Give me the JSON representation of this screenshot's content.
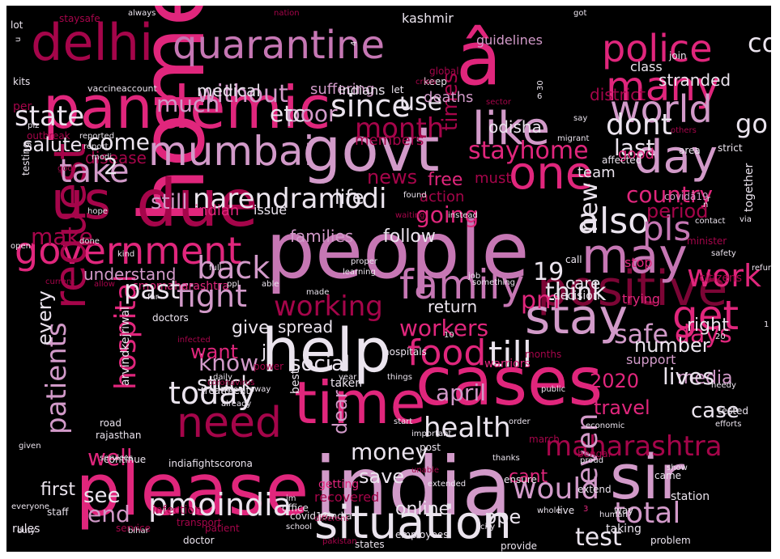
{
  "palette": {
    "background": "#000000",
    "white": "#ebe4ee",
    "lilac": "#d29ac9",
    "orchid": "#c677b4",
    "pink": "#e0267c",
    "crimson": "#a5054a",
    "maroon": "#7c0535",
    "darkred": "#4a0a20"
  },
  "words": [
    {
      "t": "people",
      "c": "orchid"
    },
    {
      "t": "home",
      "c": "pink"
    },
    {
      "t": "please",
      "c": "pink"
    },
    {
      "t": "india",
      "c": "lilac"
    },
    {
      "t": "help",
      "c": "white"
    },
    {
      "t": "cases",
      "c": "pink"
    },
    {
      "t": "govt",
      "c": "lilac"
    },
    {
      "t": "pandemic",
      "c": "pink"
    },
    {
      "t": "due",
      "c": "crimson"
    },
    {
      "t": "delhi",
      "c": "crimson"
    },
    {
      "t": "â",
      "c": "pink"
    },
    {
      "t": "time",
      "c": "pink"
    },
    {
      "t": "sir",
      "c": "lilac"
    },
    {
      "t": "situation",
      "c": "white"
    },
    {
      "t": "us",
      "c": "crimson"
    },
    {
      "t": "quarantine",
      "c": "orchid"
    },
    {
      "t": "mumbai",
      "c": "lilac"
    },
    {
      "t": "government",
      "c": "pink"
    },
    {
      "t": "like",
      "c": "lilac"
    },
    {
      "t": "one",
      "c": "pink"
    },
    {
      "t": "positive",
      "c": "maroon"
    },
    {
      "t": "stay",
      "c": "lilac"
    },
    {
      "t": "police",
      "c": "pink"
    },
    {
      "t": "many",
      "c": "pink"
    },
    {
      "t": "may",
      "c": "orchid"
    },
    {
      "t": "family",
      "c": "orchid"
    },
    {
      "t": "request",
      "c": "crimson"
    },
    {
      "t": "day",
      "c": "lilac"
    },
    {
      "t": "need",
      "c": "crimson"
    },
    {
      "t": "world",
      "c": "lilac"
    },
    {
      "t": "also",
      "c": "white"
    },
    {
      "t": "pls",
      "c": "orchid"
    },
    {
      "t": "narendramodi",
      "c": "white"
    },
    {
      "t": "students",
      "c": "crimson"
    },
    {
      "t": "food",
      "c": "pink"
    },
    {
      "t": "till",
      "c": "white"
    },
    {
      "t": "get",
      "c": "pink"
    },
    {
      "t": "pmoindia",
      "c": "white"
    },
    {
      "t": "would",
      "c": "lilac"
    },
    {
      "t": "maharashtra",
      "c": "crimson"
    },
    {
      "t": "work",
      "c": "pink"
    },
    {
      "t": "fight",
      "c": "lilac"
    },
    {
      "t": "health",
      "c": "white"
    },
    {
      "t": "today",
      "c": "white"
    },
    {
      "t": "back",
      "c": "lilac"
    },
    {
      "t": "total",
      "c": "lilac"
    },
    {
      "t": "patients",
      "c": "lilac"
    },
    {
      "t": "hospital",
      "c": "pink"
    },
    {
      "t": "safe",
      "c": "lilac"
    },
    {
      "t": "days",
      "c": "pink"
    },
    {
      "t": "since",
      "c": "white"
    },
    {
      "t": "state",
      "c": "white"
    },
    {
      "t": "take",
      "c": "lilac"
    },
    {
      "t": "month",
      "c": "crimson"
    },
    {
      "t": "dont",
      "c": "white"
    },
    {
      "t": "working",
      "c": "crimson"
    },
    {
      "t": "country",
      "c": "pink"
    },
    {
      "t": "19",
      "c": "white"
    },
    {
      "t": "new",
      "c": "white"
    },
    {
      "t": "even",
      "c": "lilac"
    },
    {
      "t": "think",
      "c": "white"
    },
    {
      "t": "stayhome",
      "c": "pink"
    },
    {
      "t": "go",
      "c": "white"
    },
    {
      "t": "without",
      "c": "lilac"
    },
    {
      "t": "much",
      "c": "lilac"
    },
    {
      "t": "poor",
      "c": "lilac"
    },
    {
      "t": "use",
      "c": "white"
    },
    {
      "t": "times",
      "c": "crimson"
    },
    {
      "t": "last",
      "c": "white"
    },
    {
      "t": "make",
      "c": "crimson"
    },
    {
      "t": "come",
      "c": "white"
    },
    {
      "t": "well",
      "c": "pink"
    },
    {
      "t": "end",
      "c": "lilac"
    },
    {
      "t": "see",
      "c": "white"
    },
    {
      "t": "know",
      "c": "lilac"
    },
    {
      "t": "stuck",
      "c": "white"
    },
    {
      "t": "april",
      "c": "lilac"
    },
    {
      "t": "money",
      "c": "white"
    },
    {
      "t": "social",
      "c": "white"
    },
    {
      "t": "workers",
      "c": "pink"
    },
    {
      "t": "pm",
      "c": "pink"
    },
    {
      "t": "period",
      "c": "crimson"
    },
    {
      "t": "going",
      "c": "pink"
    },
    {
      "t": "life",
      "c": "white"
    },
    {
      "t": "still",
      "c": "lilac"
    },
    {
      "t": "news",
      "c": "crimson"
    },
    {
      "t": "case",
      "c": "white"
    },
    {
      "t": "test",
      "c": "white"
    },
    {
      "t": "2020",
      "c": "pink"
    },
    {
      "t": "number",
      "c": "white"
    },
    {
      "t": "save",
      "c": "white"
    },
    {
      "t": "dear",
      "c": "lilac"
    },
    {
      "t": "every",
      "c": "white"
    },
    {
      "t": "first",
      "c": "white"
    },
    {
      "t": "ppe",
      "c": "white"
    },
    {
      "t": "online",
      "c": "white"
    },
    {
      "t": "travel",
      "c": "pink"
    },
    {
      "t": "cant",
      "c": "pink"
    },
    {
      "t": "want",
      "c": "pink"
    },
    {
      "t": "ji",
      "c": "white"
    },
    {
      "t": "right",
      "c": "white"
    },
    {
      "t": "media",
      "c": "lilac"
    },
    {
      "t": "spread",
      "c": "white"
    },
    {
      "t": "return",
      "c": "white"
    },
    {
      "t": "care",
      "c": "white"
    },
    {
      "t": "give",
      "c": "white"
    },
    {
      "t": "follow",
      "c": "white"
    },
    {
      "t": "families",
      "c": "lilac"
    },
    {
      "t": "understand",
      "c": "lilac"
    },
    {
      "t": "medical",
      "c": "white"
    },
    {
      "t": "deaths",
      "c": "lilac"
    },
    {
      "t": "suffering",
      "c": "lilac"
    },
    {
      "t": "stranded",
      "c": "white"
    },
    {
      "t": "district",
      "c": "crimson"
    },
    {
      "t": "odisha",
      "c": "white"
    },
    {
      "t": "members",
      "c": "crimson"
    },
    {
      "t": "disease",
      "c": "crimson"
    },
    {
      "t": "free",
      "c": "pink"
    },
    {
      "t": "must",
      "c": "crimson"
    },
    {
      "t": "action",
      "c": "crimson"
    },
    {
      "t": "indian",
      "c": "pink"
    },
    {
      "t": "issue",
      "c": "white"
    },
    {
      "t": "team",
      "c": "white"
    },
    {
      "t": "good",
      "c": "pink"
    },
    {
      "t": "kashmir",
      "c": "white"
    },
    {
      "t": "guidelines",
      "c": "lilac"
    },
    {
      "t": "class",
      "c": "white"
    },
    {
      "t": "indians",
      "c": "white"
    },
    {
      "t": "lot",
      "c": "white"
    },
    {
      "t": "staysafe",
      "c": "crimson"
    },
    {
      "t": "always",
      "c": "white"
    },
    {
      "t": "nation",
      "c": "crimson"
    },
    {
      "t": "got",
      "c": "white"
    },
    {
      "t": "join",
      "c": "white"
    },
    {
      "t": "let",
      "c": "white"
    },
    {
      "t": "keep",
      "c": "white"
    },
    {
      "t": "per",
      "c": "crimson"
    },
    {
      "t": "kits",
      "c": "white"
    },
    {
      "t": "vaccine",
      "c": "white"
    },
    {
      "t": "account",
      "c": "white"
    },
    {
      "t": "testing",
      "c": "white"
    },
    {
      "t": "outbreak",
      "c": "crimson"
    },
    {
      "t": "report",
      "c": "white"
    },
    {
      "t": "modi",
      "c": "white"
    },
    {
      "t": "reported",
      "c": "white"
    },
    {
      "t": "crisis",
      "c": "crimson"
    },
    {
      "t": "global",
      "c": "crimson"
    },
    {
      "t": "sector",
      "c": "crimson"
    },
    {
      "t": "migrant",
      "c": "white"
    },
    {
      "t": "say",
      "c": "white"
    },
    {
      "t": "affected",
      "c": "white"
    },
    {
      "t": "strict",
      "c": "white"
    },
    {
      "t": "others",
      "c": "crimson"
    },
    {
      "t": "area",
      "c": "white"
    },
    {
      "t": "covidâ19",
      "c": "lilac"
    },
    {
      "t": "together",
      "c": "white"
    },
    {
      "t": "stop",
      "c": "pink"
    },
    {
      "t": "citizens",
      "c": "crimson"
    },
    {
      "t": "trying",
      "c": "pink"
    },
    {
      "t": "support",
      "c": "lilac"
    },
    {
      "t": "decision",
      "c": "white"
    },
    {
      "t": "doctors",
      "c": "white"
    },
    {
      "t": "arvindkejriwal",
      "c": "white"
    },
    {
      "t": "cmomaharashtra",
      "c": "pink"
    },
    {
      "t": "months",
      "c": "crimson"
    },
    {
      "t": "best",
      "c": "white"
    },
    {
      "t": "taken",
      "c": "white"
    },
    {
      "t": "hospitals",
      "c": "white"
    },
    {
      "t": "warriors",
      "c": "pink"
    },
    {
      "t": "treatment",
      "c": "white"
    },
    {
      "t": "getting",
      "c": "pink"
    },
    {
      "t": "recovered",
      "c": "crimson"
    },
    {
      "t": "staff",
      "c": "white"
    },
    {
      "t": "infection",
      "c": "crimson"
    },
    {
      "t": "office",
      "c": "white"
    },
    {
      "t": "transport",
      "c": "crimson"
    },
    {
      "t": "patient",
      "c": "crimson"
    },
    {
      "t": "service",
      "c": "crimson"
    },
    {
      "t": "rules",
      "c": "white"
    },
    {
      "t": "doctor",
      "c": "white"
    },
    {
      "t": "bihar",
      "c": "white"
    },
    {
      "t": "school",
      "c": "white"
    },
    {
      "t": "services",
      "c": "white"
    },
    {
      "t": "indiafightscorona",
      "c": "white"
    },
    {
      "t": "covid19india",
      "c": "white"
    },
    {
      "t": "employees",
      "c": "white"
    },
    {
      "t": "states",
      "c": "white"
    },
    {
      "t": "provide",
      "c": "white"
    },
    {
      "t": "taking",
      "c": "white"
    },
    {
      "t": "problem",
      "c": "white"
    },
    {
      "t": "ensure",
      "c": "white"
    },
    {
      "t": "came",
      "c": "white"
    },
    {
      "t": "live",
      "c": "white"
    },
    {
      "t": "station",
      "c": "white"
    },
    {
      "t": "bengal",
      "c": "crimson"
    },
    {
      "t": "way",
      "c": "white"
    },
    {
      "t": "proud",
      "c": "white"
    },
    {
      "t": "human",
      "c": "white"
    },
    {
      "t": "extend",
      "c": "white"
    },
    {
      "t": "continue",
      "c": "white"
    },
    {
      "t": "rajasthan",
      "c": "white"
    },
    {
      "t": "road",
      "c": "white"
    },
    {
      "t": "given",
      "c": "white"
    },
    {
      "t": "post",
      "c": "white"
    },
    {
      "t": "important",
      "c": "white"
    },
    {
      "t": "march",
      "c": "crimson"
    },
    {
      "t": "pakistan",
      "c": "crimson"
    },
    {
      "t": "thanks",
      "c": "white"
    },
    {
      "t": "city",
      "c": "white"
    },
    {
      "t": "minister",
      "c": "crimson"
    },
    {
      "t": "safety",
      "c": "white"
    },
    {
      "t": "call",
      "c": "white"
    },
    {
      "t": "contact",
      "c": "white"
    },
    {
      "t": "refund",
      "c": "white"
    },
    {
      "t": "needy",
      "c": "white"
    },
    {
      "t": "economic",
      "c": "white"
    },
    {
      "t": "tested",
      "c": "white"
    },
    {
      "t": "efforts",
      "c": "white"
    },
    {
      "t": "order",
      "c": "white"
    },
    {
      "t": "public",
      "c": "white"
    },
    {
      "t": "year",
      "c": "white"
    },
    {
      "t": "things",
      "c": "white"
    },
    {
      "t": "power",
      "c": "crimson"
    },
    {
      "t": "place",
      "c": "white"
    },
    {
      "t": "full",
      "c": "white"
    },
    {
      "t": "able",
      "c": "white"
    },
    {
      "t": "ppl",
      "c": "white"
    },
    {
      "t": "current",
      "c": "crimson"
    },
    {
      "t": "allow",
      "c": "crimson"
    },
    {
      "t": "learning",
      "c": "white"
    },
    {
      "t": "proper",
      "c": "white"
    },
    {
      "t": "job",
      "c": "white"
    },
    {
      "t": "something",
      "c": "white"
    },
    {
      "t": "made",
      "c": "white"
    },
    {
      "t": "open",
      "c": "white"
    },
    {
      "t": "done",
      "c": "white"
    },
    {
      "t": "found",
      "c": "white"
    },
    {
      "t": "waiting",
      "c": "crimson"
    },
    {
      "t": "instead",
      "c": "white"
    },
    {
      "t": "daily",
      "c": "white"
    },
    {
      "t": "away",
      "c": "white"
    },
    {
      "t": "already",
      "c": "white"
    },
    {
      "t": "start",
      "c": "white"
    },
    {
      "t": "everyone",
      "c": "white"
    },
    {
      "t": "duty",
      "c": "white"
    },
    {
      "t": "unable",
      "c": "crimson"
    },
    {
      "t": "extended",
      "c": "white"
    },
    {
      "t": "show",
      "c": "white"
    },
    {
      "t": "whole",
      "c": "white"
    },
    {
      "t": "control",
      "c": "white"
    },
    {
      "t": "past",
      "c": "white"
    },
    {
      "t": "lives",
      "c": "white"
    },
    {
      "t": "etc",
      "c": "white"
    },
    {
      "t": "salute",
      "c": "white"
    },
    {
      "t": "2",
      "c": "white"
    },
    {
      "t": "3",
      "c": "pink"
    },
    {
      "t": "1",
      "c": "white"
    },
    {
      "t": "r",
      "c": "white"
    },
    {
      "t": "n",
      "c": "white"
    },
    {
      "t": "u",
      "c": "white"
    },
    {
      "t": "4",
      "c": "white"
    },
    {
      "t": "6",
      "c": "white"
    },
    {
      "t": "10",
      "c": "white"
    },
    {
      "t": "20",
      "c": "white"
    },
    {
      "t": "30",
      "c": "white"
    },
    {
      "t": "via",
      "c": "white"
    },
    {
      "t": "im",
      "c": "white"
    },
    {
      "t": "different",
      "c": "crimson"
    },
    {
      "t": "plz",
      "c": "white"
    },
    {
      "t": "god",
      "c": "crimson"
    },
    {
      "t": "hope",
      "c": "white"
    },
    {
      "t": "kind",
      "c": "white"
    },
    {
      "t": "far",
      "c": "white"
    },
    {
      "t": "infected",
      "c": "crimson"
    },
    {
      "t": "coronavirus",
      "c": "crimson"
    }
  ]
}
